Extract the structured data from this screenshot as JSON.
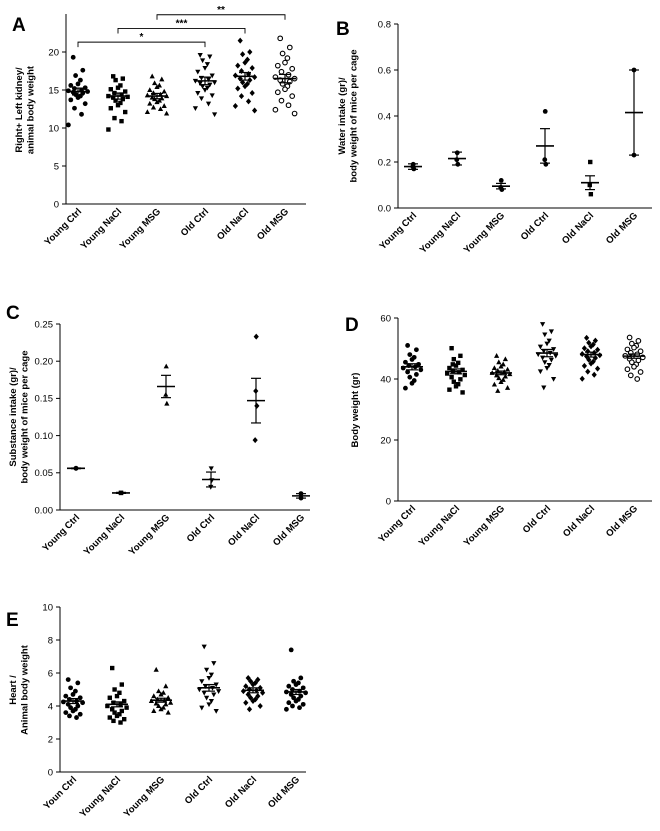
{
  "figure": {
    "panels": [
      {
        "letter": "A",
        "ylabel": [
          "Right+ Left kidney/",
          "animal body weight"
        ],
        "ylim": [
          0,
          25
        ],
        "yticks": [
          0,
          5,
          10,
          15,
          20
        ],
        "categories": [
          "Young Ctrl",
          "Young NaCl",
          "Young MSG",
          "Old Ctrl",
          "Old NaCl",
          "Old MSG"
        ],
        "markers": [
          "circle",
          "square",
          "triangle",
          "triangle-down",
          "diamond",
          "circle-open"
        ],
        "spread": 3.5,
        "groups": [
          {
            "mean": 14.8,
            "sem": 0.45,
            "points": [
              19.3,
              17.6,
              16.9,
              16.3,
              15.8,
              15.6,
              15.3,
              15.2,
              15.0,
              14.9,
              14.8,
              14.7,
              14.6,
              14.4,
              14.2,
              14.0,
              13.7,
              13.2,
              12.6,
              11.8,
              10.4
            ]
          },
          {
            "mean": 14.2,
            "sem": 0.4,
            "points": [
              16.8,
              16.5,
              16.3,
              15.6,
              15.3,
              15.1,
              14.8,
              14.6,
              14.4,
              14.2,
              14.1,
              14.0,
              13.8,
              13.6,
              13.3,
              13.0,
              12.6,
              12.1,
              11.3,
              10.9,
              9.8
            ]
          },
          {
            "mean": 14.2,
            "sem": 0.35,
            "points": [
              16.8,
              16.4,
              15.9,
              15.6,
              15.4,
              15.0,
              14.8,
              14.6,
              14.4,
              14.3,
              14.2,
              14.0,
              13.9,
              13.8,
              13.6,
              13.4,
              13.2,
              12.9,
              12.7,
              12.5,
              12.1,
              11.9
            ]
          },
          {
            "mean": 16.2,
            "sem": 0.5,
            "points": [
              19.6,
              19.4,
              18.9,
              18.4,
              17.9,
              17.4,
              16.9,
              16.6,
              16.4,
              16.2,
              16.0,
              15.9,
              15.7,
              15.5,
              15.3,
              15.0,
              14.6,
              14.3,
              13.9,
              13.2,
              12.6,
              11.8
            ]
          },
          {
            "mean": 16.8,
            "sem": 0.5,
            "points": [
              21.5,
              20.0,
              19.7,
              19.0,
              18.6,
              18.2,
              17.9,
              17.5,
              17.1,
              16.9,
              16.7,
              16.5,
              16.3,
              16.0,
              15.8,
              15.5,
              15.2,
              14.6,
              14.2,
              13.5,
              12.9,
              12.3
            ]
          },
          {
            "mean": 16.5,
            "sem": 0.55,
            "points": [
              21.8,
              20.6,
              19.8,
              19.2,
              18.6,
              18.2,
              17.8,
              17.4,
              17.0,
              16.7,
              16.5,
              16.3,
              16.1,
              15.8,
              15.5,
              15.1,
              14.7,
              14.2,
              13.6,
              13.0,
              12.4,
              11.9
            ]
          }
        ],
        "significance": [
          {
            "from": 0,
            "to": 3,
            "label": "*",
            "y": 21.3
          },
          {
            "from": 1,
            "to": 4,
            "label": "***",
            "y": 23.1
          },
          {
            "from": 2,
            "to": 5,
            "label": "**",
            "y": 24.9
          }
        ]
      },
      {
        "letter": "B",
        "ylabel": [
          "Water intake (gr)/",
          "body weight of mice per cage"
        ],
        "ylim": [
          0,
          0.8
        ],
        "yticks": [
          0.0,
          0.2,
          0.4,
          0.6,
          0.8
        ],
        "tickDecimals": 1,
        "categories": [
          "Young Ctrl",
          "Young NaCl",
          "Young MSG",
          "Old Ctrl",
          "Old NaCl",
          "Old MSG"
        ],
        "markers": [
          "circle",
          "circle",
          "circle",
          "circle",
          "square",
          "circle"
        ],
        "spread": 0.6,
        "groups": [
          {
            "mean": 0.18,
            "sem": 0.012,
            "points": [
              0.19,
              0.18,
              0.17
            ]
          },
          {
            "mean": 0.215,
            "sem": 0.028,
            "points": [
              0.24,
              0.21,
              0.19
            ]
          },
          {
            "mean": 0.095,
            "sem": 0.012,
            "points": [
              0.12,
              0.09,
              0.08
            ]
          },
          {
            "mean": 0.27,
            "sem": 0.075,
            "points": [
              0.42,
              0.21,
              0.19
            ]
          },
          {
            "mean": 0.11,
            "sem": 0.03,
            "points": [
              0.2,
              0.1,
              0.06
            ]
          },
          {
            "mean": 0.415,
            "sem": 0.185,
            "points": [
              0.6,
              0.23
            ]
          }
        ],
        "significance": []
      },
      {
        "letter": "C",
        "ylabel": [
          "Substance intake (gr)/",
          "body weight of mice per cage"
        ],
        "ylim": [
          0,
          0.25
        ],
        "yticks": [
          0.0,
          0.05,
          0.1,
          0.15,
          0.2,
          0.25
        ],
        "tickDecimals": 2,
        "categories": [
          "Young Ctrl",
          "Young NaCl",
          "Young MSG",
          "Old Ctrl",
          "Old NaCl",
          "Old MSG"
        ],
        "markers": [
          "circle",
          "square",
          "triangle",
          "triangle-down",
          "diamond",
          "circle"
        ],
        "spread": 0.6,
        "groups": [
          {
            "mean": 0.056,
            "sem": 0.0005,
            "points": [
              0.056,
              0.056
            ]
          },
          {
            "mean": 0.023,
            "sem": 0.0007,
            "points": [
              0.023,
              0.023
            ]
          },
          {
            "mean": 0.166,
            "sem": 0.015,
            "points": [
              0.193,
              0.155,
              0.143
            ]
          },
          {
            "mean": 0.041,
            "sem": 0.01,
            "points": [
              0.056,
              0.031,
              0.04
            ]
          },
          {
            "mean": 0.147,
            "sem": 0.03,
            "points": [
              0.233,
              0.16,
              0.14,
              0.094
            ]
          },
          {
            "mean": 0.019,
            "sem": 0.003,
            "points": [
              0.022,
              0.016
            ]
          }
        ],
        "significance": []
      },
      {
        "letter": "D",
        "ylabel": [
          "Body weight (gr)"
        ],
        "ylim": [
          0,
          60
        ],
        "yticks": [
          0,
          20,
          40,
          60
        ],
        "categories": [
          "Young Ctrl",
          "Young NaCl",
          "Young MSG",
          "Old Ctrl",
          "Old NaCl",
          "Old MSG"
        ],
        "markers": [
          "circle",
          "square",
          "triangle",
          "triangle-down",
          "diamond",
          "circle-open"
        ],
        "spread": 3.2,
        "groups": [
          {
            "mean": 44.0,
            "sem": 1.0,
            "points": [
              51.0,
              49.6,
              48.0,
              47.1,
              46.4,
              45.5,
              44.8,
              44.4,
              44.0,
              43.6,
              43.0,
              42.3,
              41.5,
              40.6,
              39.5,
              38.6,
              37.0
            ]
          },
          {
            "mean": 42.5,
            "sem": 0.8,
            "points": [
              50.1,
              47.6,
              46.5,
              45.3,
              44.4,
              43.6,
              43.0,
              42.6,
              42.2,
              41.8,
              41.3,
              40.6,
              39.9,
              39.1,
              38.3,
              37.6,
              36.5,
              35.6,
              44.8
            ]
          },
          {
            "mean": 42.0,
            "sem": 0.6,
            "points": [
              47.6,
              46.5,
              45.5,
              44.8,
              44.1,
              43.6,
              43.1,
              42.7,
              42.3,
              42.0,
              41.6,
              41.2,
              40.8,
              40.3,
              39.7,
              39.0,
              38.2,
              37.1,
              36.1
            ]
          },
          {
            "mean": 48.5,
            "sem": 1.2,
            "points": [
              58.0,
              55.6,
              54.6,
              52.6,
              51.6,
              50.6,
              49.8,
              49.2,
              48.6,
              48.1,
              47.6,
              47.0,
              46.3,
              45.5,
              44.6,
              43.6,
              42.5,
              40.0,
              37.2
            ]
          },
          {
            "mean": 48.0,
            "sem": 0.8,
            "points": [
              53.5,
              52.6,
              51.9,
              51.3,
              50.7,
              50.1,
              49.6,
              49.1,
              48.6,
              48.2,
              47.8,
              47.4,
              46.9,
              46.3,
              45.7,
              45.1,
              44.3,
              43.4,
              42.4,
              41.4,
              40.1
            ]
          },
          {
            "mean": 47.5,
            "sem": 0.7,
            "points": [
              53.6,
              52.5,
              51.6,
              50.9,
              50.3,
              49.7,
              49.1,
              48.6,
              48.1,
              47.6,
              47.1,
              46.6,
              46.1,
              45.5,
              44.8,
              44.0,
              43.2,
              42.3,
              41.2,
              40.0
            ]
          }
        ],
        "significance": []
      },
      {
        "letter": "E",
        "ylabel": [
          "Heart /",
          "Animal body weight"
        ],
        "ylim": [
          0,
          10
        ],
        "yticks": [
          0,
          2,
          4,
          6,
          8,
          10
        ],
        "categories": [
          "Youn Ctrl",
          "Young NaCl",
          "Young MSG",
          "Old Ctrl",
          "Old NaCl",
          "Old MSG"
        ],
        "markers": [
          "circle",
          "square",
          "triangle",
          "triangle-down",
          "diamond",
          "circle"
        ],
        "spread": 3.5,
        "groups": [
          {
            "mean": 4.3,
            "sem": 0.15,
            "points": [
              5.6,
              5.4,
              5.1,
              4.9,
              4.7,
              4.6,
              4.5,
              4.4,
              4.3,
              4.25,
              4.2,
              4.1,
              4.0,
              3.9,
              3.8,
              3.7,
              3.6,
              3.5,
              3.4,
              3.3
            ]
          },
          {
            "mean": 4.1,
            "sem": 0.15,
            "points": [
              6.3,
              5.3,
              5.0,
              4.8,
              4.6,
              4.5,
              4.3,
              4.2,
              4.1,
              4.0,
              3.9,
              3.8,
              3.7,
              3.6,
              3.5,
              3.4,
              3.3,
              3.2,
              3.1,
              3.0
            ]
          },
          {
            "mean": 4.35,
            "sem": 0.12,
            "points": [
              6.2,
              5.2,
              4.9,
              4.8,
              4.7,
              4.6,
              4.5,
              4.4,
              4.35,
              4.3,
              4.2,
              4.15,
              4.1,
              4.0,
              3.9,
              3.8,
              3.7,
              3.6
            ]
          },
          {
            "mean": 5.1,
            "sem": 0.2,
            "points": [
              7.6,
              6.6,
              6.2,
              5.9,
              5.7,
              5.5,
              5.3,
              5.2,
              5.1,
              5.0,
              4.9,
              4.8,
              4.7,
              4.5,
              4.3,
              4.1,
              3.9,
              3.7
            ]
          },
          {
            "mean": 4.95,
            "sem": 0.15,
            "points": [
              5.7,
              5.6,
              5.5,
              5.4,
              5.3,
              5.2,
              5.1,
              5.0,
              4.95,
              4.9,
              4.8,
              4.7,
              4.6,
              4.5,
              4.4,
              4.3,
              4.2,
              4.0,
              3.8
            ]
          },
          {
            "mean": 4.85,
            "sem": 0.15,
            "points": [
              7.4,
              5.7,
              5.5,
              5.4,
              5.3,
              5.2,
              5.1,
              5.0,
              4.9,
              4.85,
              4.8,
              4.7,
              4.6,
              4.5,
              4.4,
              4.3,
              4.2,
              4.1,
              4.0,
              3.9,
              3.8
            ]
          }
        ],
        "significance": []
      }
    ]
  }
}
